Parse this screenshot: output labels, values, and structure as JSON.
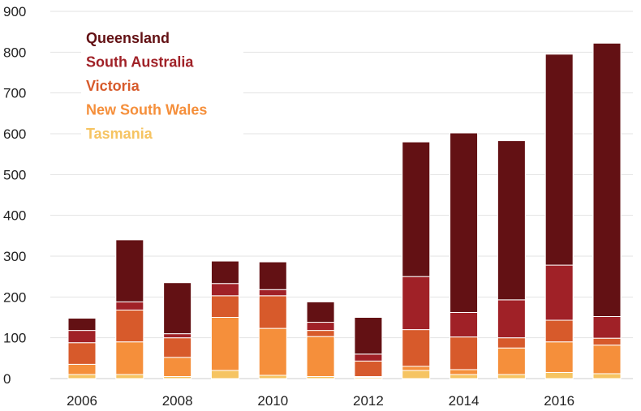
{
  "chart_data": {
    "type": "bar",
    "stacked": true,
    "categories": [
      "2006",
      "2007",
      "2008",
      "2009",
      "2010",
      "2011",
      "2012",
      "2013",
      "2014",
      "2015",
      "2016",
      "2017"
    ],
    "x_tick_labels": [
      "2006",
      "2008",
      "2010",
      "2012",
      "2014",
      "2016"
    ],
    "y_ticks": [
      0,
      100,
      200,
      300,
      400,
      500,
      600,
      700,
      800,
      900
    ],
    "ylim": [
      0,
      900
    ],
    "grid": "horizontal",
    "legend_position": "top-left",
    "series": [
      {
        "name": "Tasmania",
        "color": "#f6c462",
        "values": [
          10,
          10,
          5,
          20,
          8,
          5,
          3,
          20,
          10,
          10,
          15,
          12
        ]
      },
      {
        "name": "New South Wales",
        "color": "#f58f3b",
        "values": [
          25,
          80,
          47,
          130,
          115,
          98,
          2,
          10,
          12,
          65,
          75,
          70
        ]
      },
      {
        "name": "Victoria",
        "color": "#d75a2b",
        "values": [
          53,
          78,
          48,
          53,
          80,
          15,
          38,
          90,
          80,
          25,
          53,
          17
        ]
      },
      {
        "name": "South Australia",
        "color": "#a02127",
        "values": [
          30,
          20,
          10,
          30,
          15,
          20,
          17,
          130,
          60,
          93,
          135,
          53
        ]
      },
      {
        "name": "Queensland",
        "color": "#631114",
        "values": [
          30,
          152,
          125,
          55,
          68,
          50,
          90,
          330,
          440,
          390,
          517,
          670
        ]
      }
    ]
  }
}
